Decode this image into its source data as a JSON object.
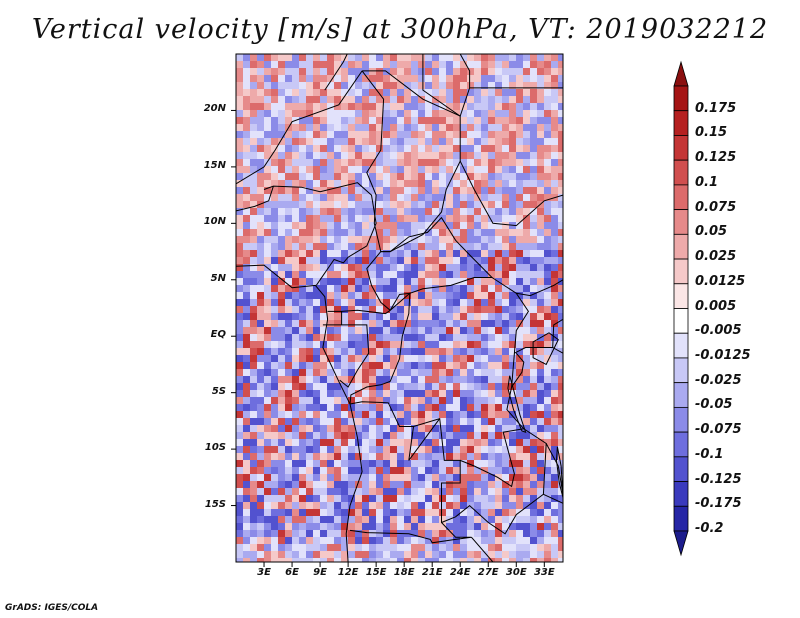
{
  "title": "Vertical velocity [m/s] at 300hPa, VT: 2019032212",
  "credit": "GrADS: IGES/COLA",
  "map": {
    "lon_range": [
      0,
      35
    ],
    "lat_range": [
      -20,
      25
    ],
    "y_ticks": [
      {
        "lat": 20,
        "label": "20N"
      },
      {
        "lat": 15,
        "label": "15N"
      },
      {
        "lat": 10,
        "label": "10N"
      },
      {
        "lat": 5,
        "label": "5N"
      },
      {
        "lat": 0,
        "label": "EQ"
      },
      {
        "lat": -5,
        "label": "5S"
      },
      {
        "lat": -10,
        "label": "10S"
      },
      {
        "lat": -15,
        "label": "15S"
      }
    ],
    "x_ticks": [
      {
        "lon": 3,
        "label": "3E"
      },
      {
        "lon": 6,
        "label": "6E"
      },
      {
        "lon": 9,
        "label": "9E"
      },
      {
        "lon": 12,
        "label": "12E"
      },
      {
        "lon": 15,
        "label": "15E"
      },
      {
        "lon": 18,
        "label": "18E"
      },
      {
        "lon": 21,
        "label": "21E"
      },
      {
        "lon": 24,
        "label": "24E"
      },
      {
        "lon": 27,
        "label": "27E"
      },
      {
        "lon": 30,
        "label": "30E"
      },
      {
        "lon": 33,
        "label": "33E"
      }
    ]
  },
  "colorbar": {
    "levels": [
      {
        "label": "0.175",
        "color": "#a51414"
      },
      {
        "label": "0.15",
        "color": "#b52020"
      },
      {
        "label": "0.125",
        "color": "#c43535"
      },
      {
        "label": "0.1",
        "color": "#d14f4f"
      },
      {
        "label": "0.075",
        "color": "#dc6b6b"
      },
      {
        "label": "0.05",
        "color": "#e68a8a"
      },
      {
        "label": "0.025",
        "color": "#eeaaaa"
      },
      {
        "label": "0.0125",
        "color": "#f5c9c9"
      },
      {
        "label": "0.005",
        "color": "#fbe6e6"
      },
      {
        "label": "-0.005",
        "color": "#ffffff"
      },
      {
        "label": "-0.0125",
        "color": "#e2e2fb"
      },
      {
        "label": "-0.025",
        "color": "#c8c8f6"
      },
      {
        "label": "-0.05",
        "color": "#aaaaf0"
      },
      {
        "label": "-0.075",
        "color": "#8b8be8"
      },
      {
        "label": "-0.1",
        "color": "#6e6ede"
      },
      {
        "label": "-0.125",
        "color": "#5252cf"
      },
      {
        "label": "-0.175",
        "color": "#3a3abd"
      },
      {
        "label": "-0.2",
        "color": "#2626a6"
      }
    ],
    "top_color": "#8a0f0f",
    "bottom_color": "#1c1c8c"
  }
}
